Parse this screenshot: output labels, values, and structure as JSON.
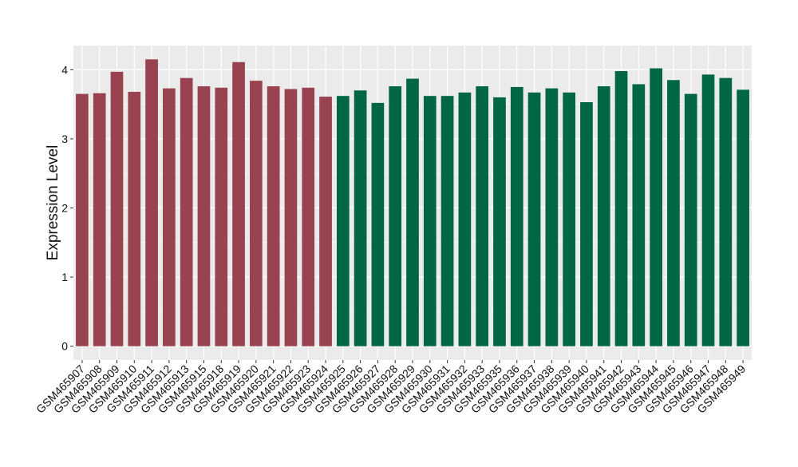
{
  "chart_data": {
    "type": "bar",
    "title": "",
    "xlabel": "",
    "ylabel": "Expression Level",
    "ylim": [
      -0.2,
      4.35
    ],
    "yticks": [
      0,
      1,
      2,
      3,
      4
    ],
    "grid": true,
    "legend": "none",
    "categories": [
      "GSM465907",
      "GSM465908",
      "GSM465909",
      "GSM465910",
      "GSM465911",
      "GSM465912",
      "GSM465913",
      "GSM465915",
      "GSM465918",
      "GSM465919",
      "GSM465920",
      "GSM465921",
      "GSM465922",
      "GSM465923",
      "GSM465924",
      "GSM465925",
      "GSM465926",
      "GSM465927",
      "GSM465928",
      "GSM465929",
      "GSM465930",
      "GSM465931",
      "GSM465932",
      "GSM465933",
      "GSM465935",
      "GSM465936",
      "GSM465937",
      "GSM465938",
      "GSM465939",
      "GSM465940",
      "GSM465941",
      "GSM465942",
      "GSM465943",
      "GSM465944",
      "GSM465945",
      "GSM465946",
      "GSM465947",
      "GSM465948",
      "GSM465949"
    ],
    "values": [
      3.65,
      3.66,
      3.97,
      3.68,
      4.15,
      3.73,
      3.88,
      3.76,
      3.74,
      4.11,
      3.84,
      3.76,
      3.72,
      3.74,
      3.61,
      3.62,
      3.7,
      3.52,
      3.76,
      3.87,
      3.62,
      3.62,
      3.67,
      3.76,
      3.6,
      3.75,
      3.67,
      3.73,
      3.67,
      3.53,
      3.76,
      3.98,
      3.79,
      4.02,
      3.85,
      3.65,
      3.93,
      3.88,
      3.71
    ],
    "groups": [
      0,
      0,
      0,
      0,
      0,
      0,
      0,
      0,
      0,
      0,
      0,
      0,
      0,
      0,
      0,
      1,
      1,
      1,
      1,
      1,
      1,
      1,
      1,
      1,
      1,
      1,
      1,
      1,
      1,
      1,
      1,
      1,
      1,
      1,
      1,
      1,
      1,
      1,
      1
    ],
    "colors": [
      "#9a4350",
      "#006644"
    ],
    "panel_bg": "#ebebeb",
    "grid_color": "#ffffff"
  }
}
